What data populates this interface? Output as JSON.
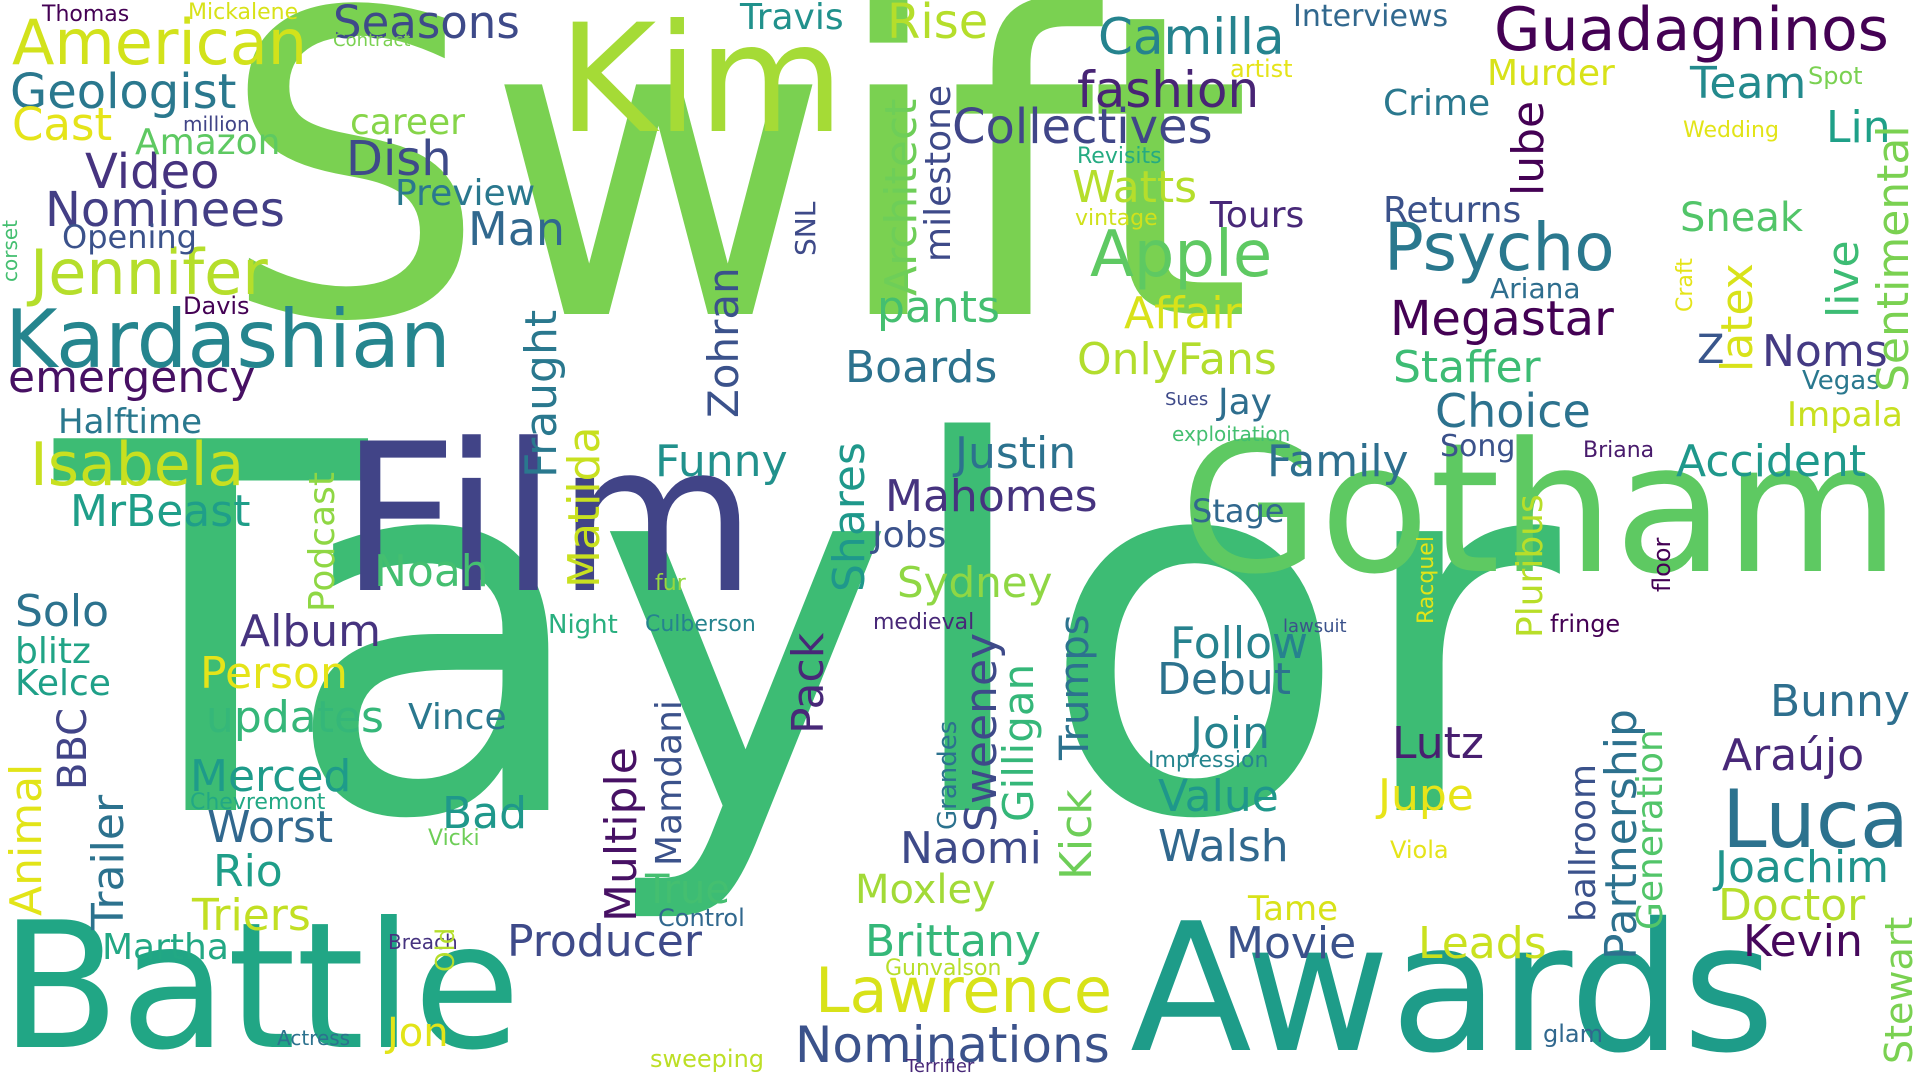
{
  "words": [
    {
      "text": "Swift",
      "color": "#7ad151"
    },
    {
      "text": "Taylor",
      "color": "#3dbc74"
    },
    {
      "text": "Film",
      "color": "#414487"
    },
    {
      "text": "Gotham",
      "color": "#5ec962"
    },
    {
      "text": "Kim",
      "color": "#a5db36"
    },
    {
      "text": "Battle",
      "color": "#21a685"
    },
    {
      "text": "Awards",
      "color": "#1e9c89"
    },
    {
      "text": "Guadagninos",
      "color": "#440154"
    },
    {
      "text": "Kardashian",
      "color": "#25858e"
    },
    {
      "text": "Psycho",
      "color": "#2a788e"
    },
    {
      "text": "Apple",
      "color": "#5ec962"
    },
    {
      "text": "Luca",
      "color": "#2c728e"
    },
    {
      "text": "American",
      "color": "#d2e21b"
    },
    {
      "text": "Jennifer",
      "color": "#b5de2b"
    },
    {
      "text": "Isabela",
      "color": "#c8e020"
    },
    {
      "text": "Lawrence",
      "color": "#d8e219"
    },
    {
      "text": "Nominations",
      "color": "#3b528b"
    },
    {
      "text": "Collectives",
      "color": "#404688"
    },
    {
      "text": "Camilla",
      "color": "#25838e"
    },
    {
      "text": "fashion",
      "color": "#482475"
    },
    {
      "text": "Seasons",
      "color": "#3e4a89"
    },
    {
      "text": "Geologist",
      "color": "#2a788e"
    },
    {
      "text": "Cast",
      "color": "#e5e419"
    },
    {
      "text": "Video",
      "color": "#46337f"
    },
    {
      "text": "Nominees",
      "color": "#433e85"
    },
    {
      "text": "Opening",
      "color": "#3b528b"
    },
    {
      "text": "Amazon",
      "color": "#5ec962"
    },
    {
      "text": "million",
      "color": "#414487"
    },
    {
      "text": "Thomas",
      "color": "#440154"
    },
    {
      "text": "Mickalene",
      "color": "#d8e219"
    },
    {
      "text": "Contract",
      "color": "#7ad151"
    },
    {
      "text": "Travis",
      "color": "#21918c"
    },
    {
      "text": "Rise",
      "color": "#b5de2b"
    },
    {
      "text": "Interviews",
      "color": "#31688e"
    },
    {
      "text": "career",
      "color": "#86d549"
    },
    {
      "text": "Dish",
      "color": "#3e4a89"
    },
    {
      "text": "Preview",
      "color": "#2a788e"
    },
    {
      "text": "Man",
      "color": "#31688e"
    },
    {
      "text": "emergency",
      "color": "#471063"
    },
    {
      "text": "Halftime",
      "color": "#2a788e"
    },
    {
      "text": "MrBeast",
      "color": "#1f9e89"
    },
    {
      "text": "Solo",
      "color": "#2c728e"
    },
    {
      "text": "blitz",
      "color": "#20a486"
    },
    {
      "text": "Kelce",
      "color": "#1fa088"
    },
    {
      "text": "Album",
      "color": "#46337f"
    },
    {
      "text": "Person",
      "color": "#e5e419"
    },
    {
      "text": "updates",
      "color": "#35b779"
    },
    {
      "text": "Vince",
      "color": "#2a788e"
    },
    {
      "text": "Merced",
      "color": "#1e9b8a"
    },
    {
      "text": "Worst",
      "color": "#31688e"
    },
    {
      "text": "Bad",
      "color": "#1f988b"
    },
    {
      "text": "Rio",
      "color": "#1f9e89"
    },
    {
      "text": "Triers",
      "color": "#c2df23"
    },
    {
      "text": "Martha",
      "color": "#22a884"
    },
    {
      "text": "Jon",
      "color": "#e2e418"
    },
    {
      "text": "Actress",
      "color": "#2c728e"
    },
    {
      "text": "Breach",
      "color": "#46337f"
    },
    {
      "text": "Chevremont",
      "color": "#22a884"
    },
    {
      "text": "Vicki",
      "color": "#6ece58"
    },
    {
      "text": "Producer",
      "color": "#3e4a89"
    },
    {
      "text": "True",
      "color": "#44bf70"
    },
    {
      "text": "Control",
      "color": "#31688e"
    },
    {
      "text": "Gunvalson",
      "color": "#b8de29"
    },
    {
      "text": "sweeping",
      "color": "#bddf26"
    },
    {
      "text": "Terrifier",
      "color": "#482878"
    },
    {
      "text": "Noah",
      "color": "#44bf70"
    },
    {
      "text": "Funny",
      "color": "#21918c"
    },
    {
      "text": "Justin",
      "color": "#2c728e"
    },
    {
      "text": "Mahomes",
      "color": "#46337f"
    },
    {
      "text": "Jobs",
      "color": "#3b528b"
    },
    {
      "text": "Sydney",
      "color": "#8fd744"
    },
    {
      "text": "fur",
      "color": "#95d840"
    },
    {
      "text": "Night",
      "color": "#29af7f"
    },
    {
      "text": "Culberson",
      "color": "#25838e"
    },
    {
      "text": "medieval",
      "color": "#482878"
    },
    {
      "text": "Brittany",
      "color": "#35b779"
    },
    {
      "text": "Moxley",
      "color": "#a2da37"
    },
    {
      "text": "Watts",
      "color": "#b5de2b"
    },
    {
      "text": "vintage",
      "color": "#d0e11c"
    },
    {
      "text": "Revisits",
      "color": "#25ab82"
    },
    {
      "text": "pants",
      "color": "#44bf70"
    },
    {
      "text": "Affair",
      "color": "#d8e219"
    },
    {
      "text": "OnlyFans",
      "color": "#b2dd2d"
    },
    {
      "text": "Boards",
      "color": "#2c728e"
    },
    {
      "text": "Family",
      "color": "#2e6f8e"
    },
    {
      "text": "Accident",
      "color": "#1f988b"
    },
    {
      "text": "Stage",
      "color": "#31688e"
    },
    {
      "text": "Tours",
      "color": "#482878"
    },
    {
      "text": "Returns",
      "color": "#3b528b"
    },
    {
      "text": "Crime",
      "color": "#2a788e"
    },
    {
      "text": "Murder",
      "color": "#d8e219"
    },
    {
      "text": "artist",
      "color": "#e5e419"
    },
    {
      "text": "Team",
      "color": "#238a8d"
    },
    {
      "text": "Spot",
      "color": "#7ad151"
    },
    {
      "text": "Wedding",
      "color": "#e2e418"
    },
    {
      "text": "Lin",
      "color": "#1fa088"
    },
    {
      "text": "Sneak",
      "color": "#52c569"
    },
    {
      "text": "Ariana",
      "color": "#2e6e8e"
    },
    {
      "text": "Megastar",
      "color": "#440154"
    },
    {
      "text": "Staffer",
      "color": "#3dbc74"
    },
    {
      "text": "Choice",
      "color": "#2c728e"
    },
    {
      "text": "Z",
      "color": "#39568c"
    },
    {
      "text": "Noms",
      "color": "#443a83"
    },
    {
      "text": "Vegas",
      "color": "#2a788e"
    },
    {
      "text": "Impala",
      "color": "#c8e020"
    },
    {
      "text": "Jay",
      "color": "#2e6e8e"
    },
    {
      "text": "Sues",
      "color": "#3e4a89"
    },
    {
      "text": "exploitation",
      "color": "#44bf70"
    },
    {
      "text": "Song",
      "color": "#3b528b"
    },
    {
      "text": "Briana",
      "color": "#481a6c"
    },
    {
      "text": "Follow",
      "color": "#26828e"
    },
    {
      "text": "Debut",
      "color": "#2c728e"
    },
    {
      "text": "Join",
      "color": "#25838e"
    },
    {
      "text": "Value",
      "color": "#1f978b"
    },
    {
      "text": "Walsh",
      "color": "#31688e"
    },
    {
      "text": "Naomi",
      "color": "#3e4a89"
    },
    {
      "text": "Impression",
      "color": "#25858e"
    },
    {
      "text": "Lutz",
      "color": "#481f70"
    },
    {
      "text": "Jupe",
      "color": "#e7e419"
    },
    {
      "text": "Viola",
      "color": "#e5e419"
    },
    {
      "text": "Tame",
      "color": "#d8e219"
    },
    {
      "text": "Movie",
      "color": "#3b528b"
    },
    {
      "text": "Leads",
      "color": "#cae11f"
    },
    {
      "text": "lawsuit",
      "color": "#3b528b"
    },
    {
      "text": "fringe",
      "color": "#440154"
    },
    {
      "text": "glam",
      "color": "#31688e"
    },
    {
      "text": "Bunny",
      "color": "#2e6f8e"
    },
    {
      "text": "Araújo",
      "color": "#482878"
    },
    {
      "text": "Joachim",
      "color": "#1f948c"
    },
    {
      "text": "Doctor",
      "color": "#b5de2b"
    },
    {
      "text": "Kevin",
      "color": "#46085c"
    },
    {
      "text": "Sentimental",
      "color": "#7ad151"
    },
    {
      "text": "live",
      "color": "#3dbc74"
    },
    {
      "text": "latex",
      "color": "#d8e219"
    },
    {
      "text": "Craft",
      "color": "#e5e419"
    },
    {
      "text": "lube",
      "color": "#440154"
    },
    {
      "text": "milestone",
      "color": "#3e4a89"
    },
    {
      "text": "Architect",
      "color": "#6ece58"
    },
    {
      "text": "SNL",
      "color": "#3e4a89"
    },
    {
      "text": "Zohran",
      "color": "#3b528b"
    },
    {
      "text": "Fraught",
      "color": "#2a788e"
    },
    {
      "text": "Matilda",
      "color": "#c8e020"
    },
    {
      "text": "Podcast",
      "color": "#8fd744"
    },
    {
      "text": "Shares",
      "color": "#1f988b"
    },
    {
      "text": "Pack",
      "color": "#482878"
    },
    {
      "text": "Multiple",
      "color": "#471164"
    },
    {
      "text": "Mamdani",
      "color": "#3b528b"
    },
    {
      "text": "Sweeney",
      "color": "#3e4a89"
    },
    {
      "text": "Gilligan",
      "color": "#35b779"
    },
    {
      "text": "Kick",
      "color": "#6ece58"
    },
    {
      "text": "Trumps",
      "color": "#2c728e"
    },
    {
      "text": "Grandes",
      "color": "#2c728e"
    },
    {
      "text": "Racquel",
      "color": "#e2e418"
    },
    {
      "text": "Pluribus",
      "color": "#b8de29"
    },
    {
      "text": "floor",
      "color": "#440154"
    },
    {
      "text": "Partnership",
      "color": "#2d718e"
    },
    {
      "text": "ballroom",
      "color": "#3b528b"
    },
    {
      "text": "Generation",
      "color": "#52c569"
    },
    {
      "text": "Stewart",
      "color": "#7ad151"
    },
    {
      "text": "BBC",
      "color": "#414487"
    },
    {
      "text": "Trailer",
      "color": "#2c728e"
    },
    {
      "text": "Animal",
      "color": "#e2e418"
    },
    {
      "text": "Old",
      "color": "#b5de2b"
    },
    {
      "text": "corset",
      "color": "#44bf70"
    },
    {
      "text": "Davis",
      "color": "#440154"
    }
  ]
}
